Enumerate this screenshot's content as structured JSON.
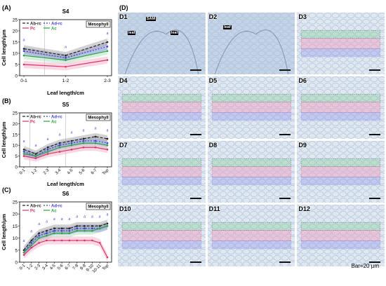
{
  "panels": {
    "A": {
      "label": "(A)",
      "title": "S4",
      "tag": "Mesophyll",
      "xlabel": "Leaf length/cm",
      "ylabel": "Cell length/μm",
      "legend": [
        "Ab-rc",
        "Ad-rc",
        "Pc",
        "Ac"
      ]
    },
    "B": {
      "label": "(B)",
      "title": "S5",
      "tag": "Mesophyll",
      "xlabel": "Leaf length/cm",
      "ylabel": "Cell length/μm",
      "legend": [
        "Ab-rc",
        "Ad-rc",
        "Pc",
        "Ac"
      ]
    },
    "C": {
      "label": "(C)",
      "title": "S6",
      "tag": "Mesophyll",
      "xlabel": "",
      "ylabel": "Cell length/μm",
      "legend": [
        "Ab-rc",
        "Ad-rc",
        "Pc",
        "Ac"
      ]
    },
    "D": {
      "label": "(D)",
      "scale": "Bar=20 μm",
      "tiles": [
        "D1",
        "D2",
        "D3",
        "D4",
        "D5",
        "D6",
        "D7",
        "D8",
        "D9",
        "D10",
        "D11",
        "D12"
      ],
      "d1_notes": [
        "SAM",
        "leaf",
        "leaf"
      ],
      "d2_notes": [
        "leaf"
      ]
    }
  },
  "colors": {
    "ab_rc": "#222222",
    "ad_rc": "#3a3fd6",
    "pc": "#d6336c",
    "ac": "#2ea043",
    "tissue": "#c9d6e6"
  },
  "chart_data": [
    {
      "type": "line",
      "title": "S4",
      "categories": [
        "0-1",
        "1-2",
        "2-3"
      ],
      "xlabel": "Leaf length/cm",
      "ylabel": "Cell length/μm",
      "ylim": [
        0,
        25
      ],
      "yticks": [
        0,
        5,
        10,
        15,
        20,
        25
      ],
      "series": [
        {
          "name": "Ab-rc",
          "values": [
            12,
            9,
            15
          ]
        },
        {
          "name": "Ad-rc",
          "values": [
            11,
            8,
            13
          ]
        },
        {
          "name": "Pc",
          "values": [
            5,
            4,
            7
          ]
        },
        {
          "name": "Ac",
          "values": [
            9,
            7,
            11
          ]
        }
      ]
    },
    {
      "type": "line",
      "title": "S5",
      "categories": [
        "0-1",
        "1-2",
        "2-3",
        "3-4",
        "4-5",
        "5-6",
        "6-7",
        "Top"
      ],
      "xlabel": "Leaf length/cm",
      "ylabel": "Cell length/μm",
      "ylim": [
        0,
        25
      ],
      "yticks": [
        0,
        5,
        10,
        15,
        20,
        25
      ],
      "series": [
        {
          "name": "Ab-rc",
          "values": [
            8,
            6,
            9,
            11,
            12,
            13,
            14,
            13
          ]
        },
        {
          "name": "Ad-rc",
          "values": [
            7,
            5,
            8,
            10,
            11,
            12,
            12,
            11
          ]
        },
        {
          "name": "Pc",
          "values": [
            5,
            4,
            6,
            7,
            8,
            9,
            9,
            8
          ]
        },
        {
          "name": "Ac",
          "values": [
            6,
            5,
            7,
            9,
            10,
            11,
            11,
            10
          ]
        }
      ]
    },
    {
      "type": "line",
      "title": "S6",
      "categories": [
        "0-1",
        "1-2",
        "2-3",
        "3-4",
        "4-5",
        "5-6",
        "6-7",
        "7-8",
        "8-9",
        "9-10",
        "10-11",
        "Top"
      ],
      "xlabel": "",
      "ylabel": "Cell length/μm",
      "ylim": [
        0,
        25
      ],
      "yticks": [
        0,
        5,
        10,
        15,
        20,
        25
      ],
      "series": [
        {
          "name": "Ab-rc",
          "values": [
            5,
            9,
            12,
            13,
            14,
            14,
            14,
            15,
            15,
            15,
            15,
            16
          ]
        },
        {
          "name": "Ad-rc",
          "values": [
            4,
            8,
            11,
            12,
            13,
            13,
            13,
            14,
            14,
            14,
            14,
            15
          ]
        },
        {
          "name": "Pc",
          "values": [
            3,
            6,
            8,
            9,
            9,
            9,
            9,
            9,
            9,
            9,
            8,
            2
          ]
        },
        {
          "name": "Ac",
          "values": [
            4,
            7,
            10,
            11,
            12,
            12,
            12,
            13,
            13,
            13,
            14,
            15
          ]
        }
      ]
    }
  ]
}
